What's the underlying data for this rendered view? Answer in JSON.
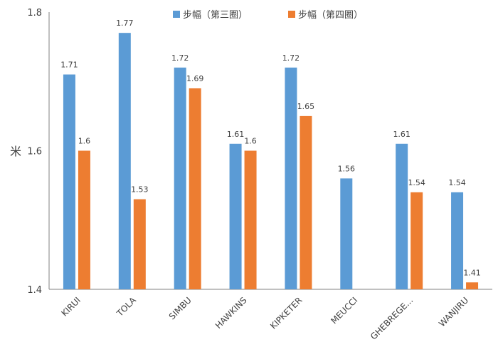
{
  "chart_data": {
    "type": "bar",
    "title": "",
    "xlabel": "",
    "ylabel": "米",
    "ylim": [
      1.4,
      1.8
    ],
    "yticks": [
      "1.4",
      "1.6",
      "1.8"
    ],
    "grid": false,
    "legend_position": "top",
    "categories": [
      "KIRUI",
      "TOLA",
      "SIMBU",
      "HAWKINS",
      "KIPKETER",
      "MEUCCI",
      "GHEBREGE...",
      "WANJIRU"
    ],
    "series": [
      {
        "name": "步幅（第三圈）",
        "color": "#5B9BD5",
        "values": [
          1.71,
          1.77,
          1.72,
          1.61,
          1.72,
          1.56,
          1.61,
          1.54
        ],
        "labels": [
          "1.71",
          "1.77",
          "1.72",
          "1.61",
          "1.72",
          "1.56",
          "1.61",
          "1.54"
        ]
      },
      {
        "name": "步幅（第四圈）",
        "color": "#ED7D31",
        "values": [
          1.6,
          1.53,
          1.69,
          1.6,
          1.65,
          null,
          1.54,
          1.41
        ],
        "labels": [
          "1.6",
          "1.53",
          "1.69",
          "1.6",
          "1.65",
          null,
          "1.54",
          "1.41"
        ]
      }
    ]
  }
}
